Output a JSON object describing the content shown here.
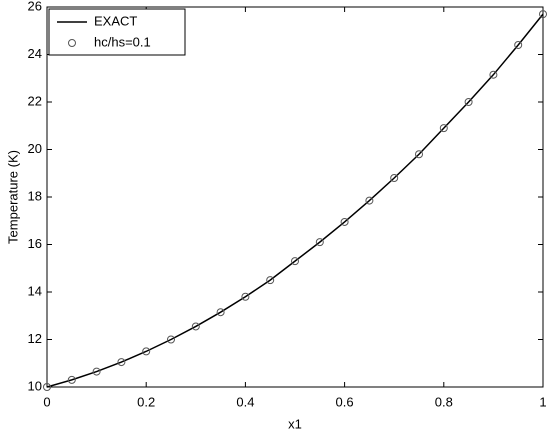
{
  "chart_data": {
    "type": "line",
    "xlabel": "x1",
    "ylabel": "Temperature (K)",
    "x": [
      0,
      0.05,
      0.1,
      0.15,
      0.2,
      0.25,
      0.3,
      0.35,
      0.4,
      0.45,
      0.5,
      0.55,
      0.6,
      0.65,
      0.7,
      0.75,
      0.8,
      0.85,
      0.9,
      0.95,
      1
    ],
    "series": [
      {
        "name": "EXACT",
        "color": "#000000",
        "style": "line",
        "values": [
          10,
          10.3,
          10.65,
          11.05,
          11.5,
          12.0,
          12.55,
          13.15,
          13.8,
          14.5,
          15.3,
          16.1,
          16.95,
          17.85,
          18.8,
          19.8,
          20.9,
          22.0,
          23.15,
          24.4,
          25.7
        ]
      },
      {
        "name": "hc/hs=0.1",
        "color": "#555555",
        "style": "marker",
        "values": [
          10,
          10.3,
          10.65,
          11.05,
          11.5,
          12.0,
          12.55,
          13.15,
          13.8,
          14.5,
          15.3,
          16.1,
          16.95,
          17.85,
          18.8,
          19.8,
          20.9,
          22.0,
          23.15,
          24.4,
          25.7
        ]
      }
    ],
    "xlim": [
      0,
      1
    ],
    "xticks": [
      0,
      0.2,
      0.4,
      0.6,
      0.8,
      1
    ],
    "ylim": [
      10,
      26
    ],
    "yticks": [
      10,
      12,
      14,
      16,
      18,
      20,
      22,
      24,
      26
    ],
    "legend": "top-left"
  }
}
